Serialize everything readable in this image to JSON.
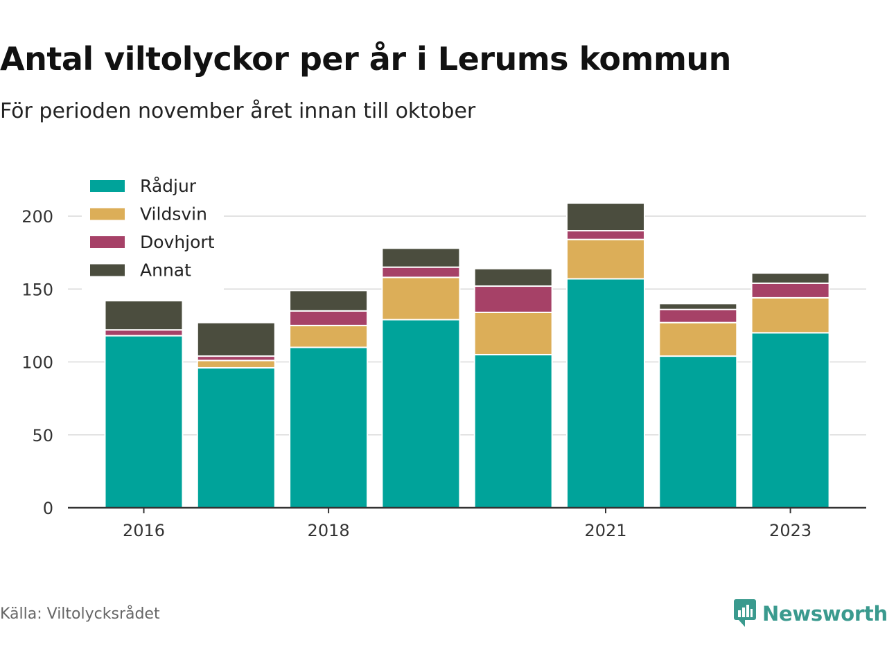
{
  "title": "Antal viltolyckor per år i Lerums kommun",
  "subtitle": "För perioden november året innan till oktober",
  "source": "Källa: Viltolycksrådet",
  "brand": {
    "name": "Newsworthy",
    "icon": "newsworthy-logo-icon",
    "color": "#3a9a8e"
  },
  "chart_data": {
    "type": "bar",
    "stacked": true,
    "categories": [
      "2016",
      "2017",
      "2018",
      "2019",
      "2020",
      "2021",
      "2022",
      "2023"
    ],
    "x_tick_labels": [
      "2016",
      "",
      "2018",
      "",
      "",
      "2021",
      "",
      "2023"
    ],
    "series": [
      {
        "name": "Rådjur",
        "color": "#00a39a",
        "values": [
          118,
          96,
          110,
          129,
          105,
          157,
          104,
          120
        ]
      },
      {
        "name": "Vildsvin",
        "color": "#dcae58",
        "values": [
          0,
          5,
          15,
          29,
          29,
          27,
          23,
          24
        ]
      },
      {
        "name": "Dovhjort",
        "color": "#a64167",
        "values": [
          4,
          3,
          10,
          7,
          18,
          6,
          9,
          10
        ]
      },
      {
        "name": "Annat",
        "color": "#4b4d3e",
        "values": [
          20,
          23,
          14,
          13,
          12,
          19,
          4,
          7
        ]
      }
    ],
    "ylim": [
      0,
      220
    ],
    "yticks": [
      0,
      50,
      100,
      150,
      200
    ],
    "grid": true,
    "legend_position": "top-left"
  }
}
